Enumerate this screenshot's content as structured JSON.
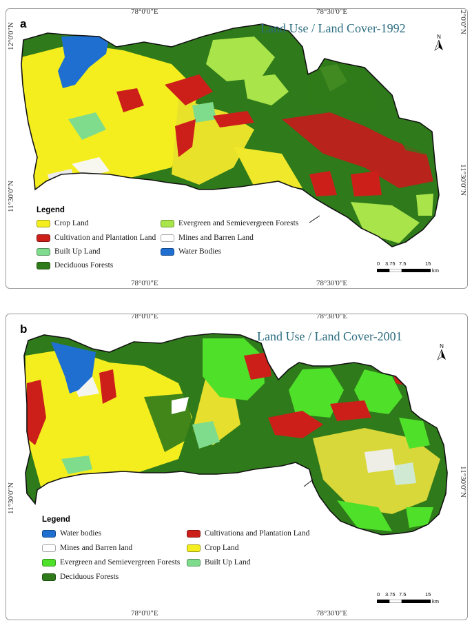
{
  "maps": [
    {
      "panel_letter": "a",
      "title": "Land Use / Land Cover-1992",
      "coords": {
        "top_left": "78°0'0\"E",
        "top_right": "78°30'0\"E",
        "bottom_left": "78°0'0\"E",
        "bottom_right": "78°30'0\"E",
        "left_top": "12°0'0\"N",
        "left_mid": "11°30'0\"N",
        "right_top": "12°0'0\"N",
        "right_mid": "11°30'0\"N"
      },
      "north_label": "N",
      "scale": {
        "ticks": [
          "0",
          "3.75",
          "7.5",
          "15"
        ],
        "unit": "km"
      },
      "legend_title": "Legend",
      "legend": [
        {
          "label": "Crop Land",
          "color": "#f5ee1f"
        },
        {
          "label": "Evergreen and Semievergreen Forests",
          "color": "#a8e44a"
        },
        {
          "label": "Cultivation and Plantation Land",
          "color": "#cc1f1a"
        },
        {
          "label": "Mines and Barren Land",
          "color": "#ffffff"
        },
        {
          "label": "Built Up Land",
          "color": "#7fdc8c"
        },
        {
          "label": "Water Bodies",
          "color": "#1f6fd1"
        },
        {
          "label": "Deciduous Forests",
          "color": "#2f7a1a"
        }
      ]
    },
    {
      "panel_letter": "b",
      "title": "Land Use /  Land Cover-2001",
      "coords": {
        "top_left": "78°0'0\"E",
        "top_right": "78°30'0\"E",
        "bottom_left": "78°0'0\"E",
        "bottom_right": "78°30'0\"E",
        "left_mid": "11°30'0\"N",
        "right_mid": "11°30'0\"N"
      },
      "north_label": "N",
      "scale": {
        "ticks": [
          "0",
          "3.75",
          "7.5",
          "15"
        ],
        "unit": "km"
      },
      "legend_title": "Legend",
      "legend": [
        {
          "label": "Water bodies",
          "color": "#1f6fd1"
        },
        {
          "label": "Cultivationa and Plantation Land",
          "color": "#cc1f1a"
        },
        {
          "label": "Mines and Barren land",
          "color": "#ffffff"
        },
        {
          "label": "Crop Land",
          "color": "#f5ee1f"
        },
        {
          "label": "Evergreen and Semievergreen Forests",
          "color": "#4fe02a"
        },
        {
          "label": "Built Up Land",
          "color": "#7fdc8c"
        },
        {
          "label": "Deciduous Forests",
          "color": "#2f7a1a"
        }
      ]
    }
  ]
}
